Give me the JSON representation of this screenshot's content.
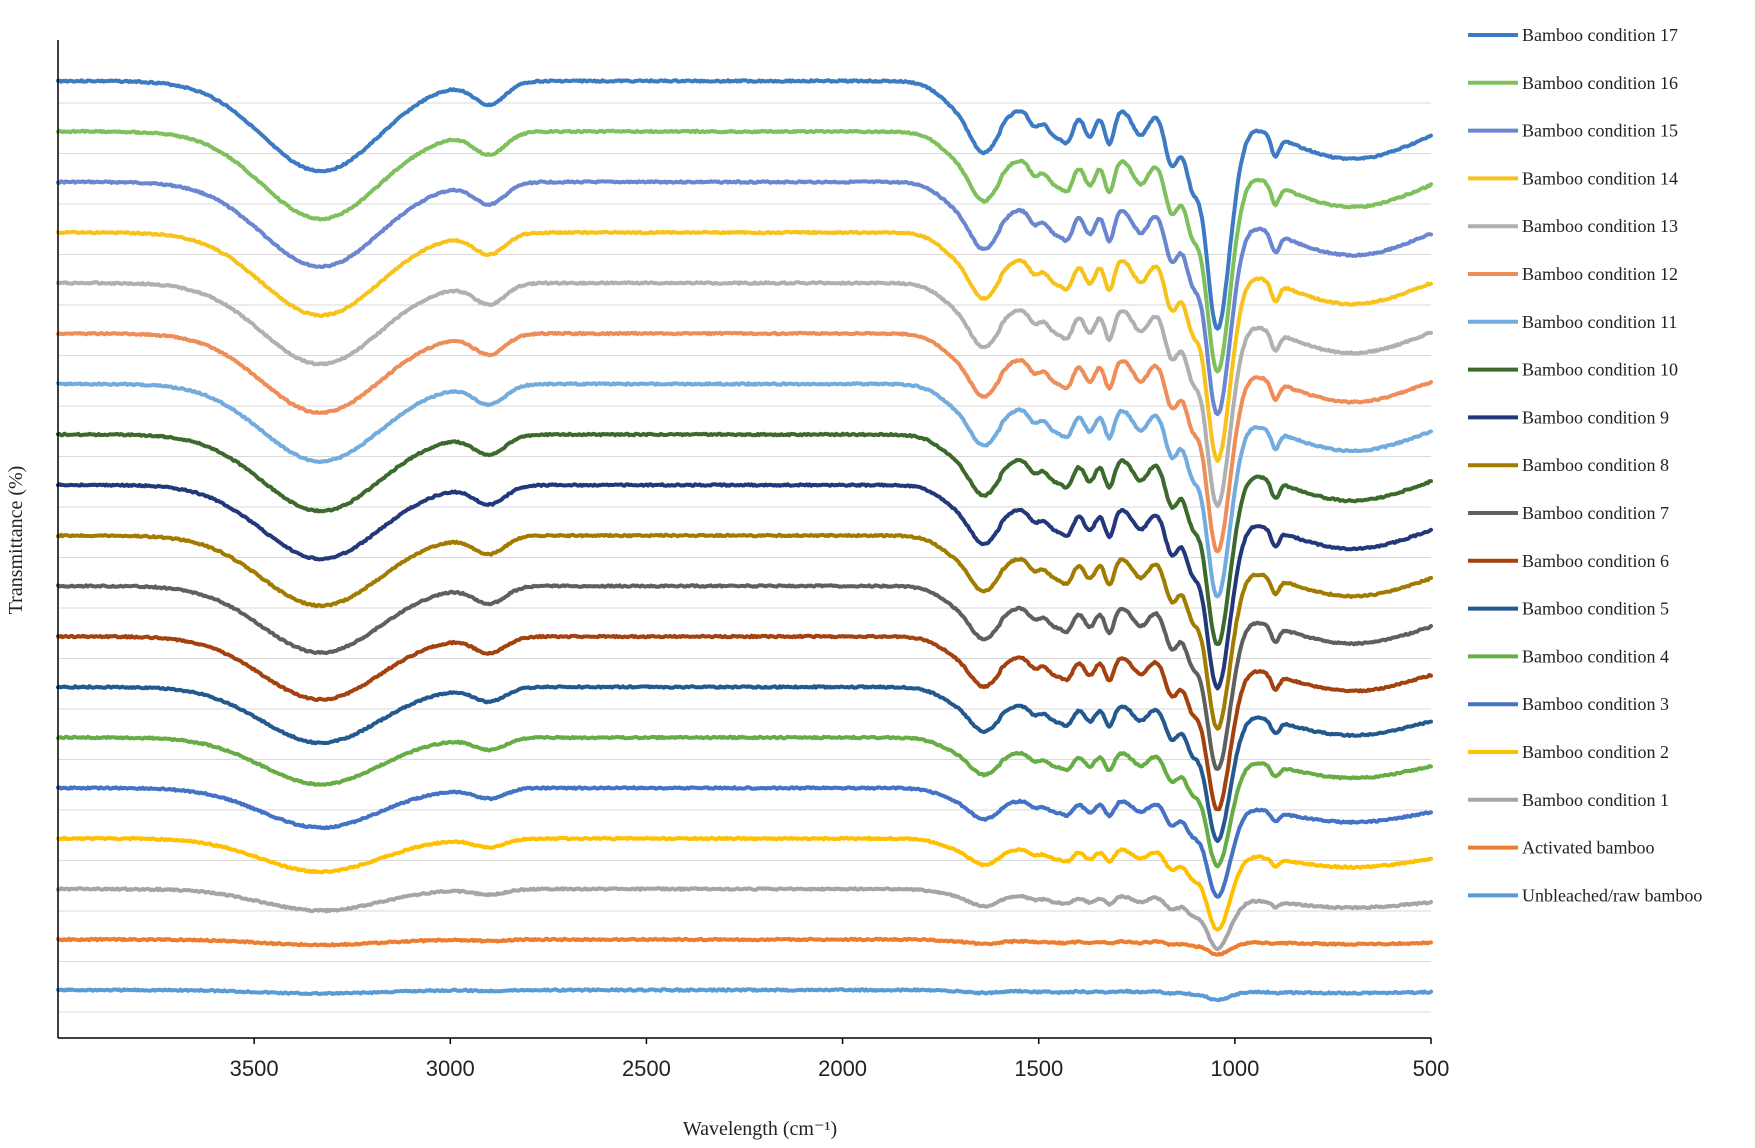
{
  "chart_data": {
    "type": "line",
    "title": "",
    "xlabel": "Wavelength (cm⁻¹)",
    "ylabel": "Transmittance (%)",
    "xlim": [
      4000,
      500
    ],
    "x_reversed": true,
    "x_ticks": [
      3500,
      3000,
      2500,
      2000,
      1500,
      1000,
      500
    ],
    "y_tick_labels": false,
    "grid": "horizontal",
    "legend_position": "right",
    "offset_step": 1,
    "series": [
      {
        "name": "Bamboo condition 17",
        "color": "#3d7ac4",
        "offset": 18,
        "intensity": 1.0
      },
      {
        "name": "Bamboo condition 16",
        "color": "#7dc05c",
        "offset": 17,
        "intensity": 0.97
      },
      {
        "name": "Bamboo condition 15",
        "color": "#6a86d0",
        "offset": 16,
        "intensity": 0.94
      },
      {
        "name": "Bamboo condition 14",
        "color": "#f8c21c",
        "offset": 15,
        "intensity": 0.92
      },
      {
        "name": "Bamboo condition 13",
        "color": "#b0b0b0",
        "offset": 14,
        "intensity": 0.9
      },
      {
        "name": "Bamboo condition 12",
        "color": "#ef8d58",
        "offset": 13,
        "intensity": 0.88
      },
      {
        "name": "Bamboo condition 11",
        "color": "#72acdf",
        "offset": 12,
        "intensity": 0.86
      },
      {
        "name": "Bamboo condition 10",
        "color": "#3c6a2c",
        "offset": 11,
        "intensity": 0.85
      },
      {
        "name": "Bamboo condition 9",
        "color": "#23387a",
        "offset": 10,
        "intensity": 0.82
      },
      {
        "name": "Bamboo condition 8",
        "color": "#a27c00",
        "offset": 9,
        "intensity": 0.78
      },
      {
        "name": "Bamboo condition 7",
        "color": "#5f5f5f",
        "offset": 8,
        "intensity": 0.74
      },
      {
        "name": "Bamboo condition 6",
        "color": "#a3410f",
        "offset": 7,
        "intensity": 0.7
      },
      {
        "name": "Bamboo condition 5",
        "color": "#24598f",
        "offset": 6,
        "intensity": 0.62
      },
      {
        "name": "Bamboo condition 4",
        "color": "#66ad45",
        "offset": 5,
        "intensity": 0.52
      },
      {
        "name": "Bamboo condition 3",
        "color": "#4472c4",
        "offset": 4,
        "intensity": 0.44
      },
      {
        "name": "Bamboo condition 2",
        "color": "#ffc000",
        "offset": 3,
        "intensity": 0.37
      },
      {
        "name": "Bamboo condition 1",
        "color": "#a5a5a5",
        "offset": 2,
        "intensity": 0.24
      },
      {
        "name": "Activated bamboo",
        "color": "#ed7d31",
        "offset": 1,
        "intensity": 0.06
      },
      {
        "name": "Unbleached/raw bamboo",
        "color": "#5b9bd5",
        "offset": 0,
        "intensity": 0.04
      }
    ]
  }
}
